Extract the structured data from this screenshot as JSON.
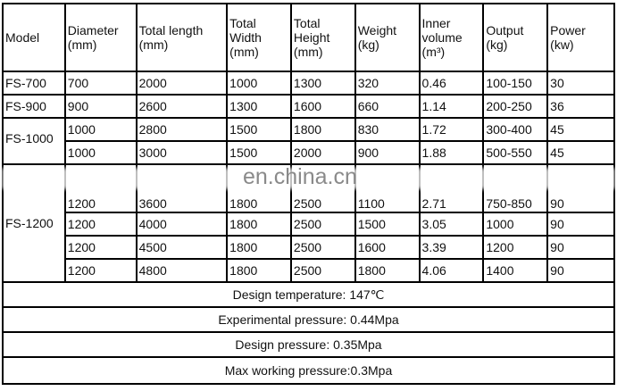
{
  "headers": [
    "Model",
    "Diameter (mm)",
    "Total length (mm)",
    "Total Width (mm)",
    "Total Height (mm)",
    "Weight (kg)",
    "Inner volume (m³)",
    "Output (kg)",
    "Power (kw)"
  ],
  "rows": [
    {
      "model": "FS-700",
      "cells": [
        "700",
        "2000",
        "1000",
        "1300",
        "320",
        "0.46",
        "100-150",
        "30"
      ]
    },
    {
      "model": "FS-900",
      "cells": [
        "900",
        "2600",
        "1300",
        "1600",
        "660",
        "1.14",
        "200-250",
        "36"
      ]
    },
    {
      "model": "FS-1000",
      "cells": [
        "1000",
        "2800",
        "1500",
        "1800",
        "830",
        "1.72",
        "300-400",
        "45"
      ]
    },
    {
      "model": "",
      "cells": [
        "1000",
        "3000",
        "1500",
        "2000",
        "900",
        "1.88",
        "500-550",
        "45"
      ]
    },
    {
      "model": "FS-1200",
      "cells": [
        "1200",
        "3600",
        "1800",
        "2500",
        "1100",
        "2.71",
        "750-850",
        "90"
      ]
    },
    {
      "model": "",
      "cells": [
        "1200",
        "4000",
        "1800",
        "2500",
        "1500",
        "3.05",
        "1000",
        "90"
      ]
    },
    {
      "model": "",
      "cells": [
        "1200",
        "4500",
        "1800",
        "2500",
        "1600",
        "3.39",
        "1200",
        "90"
      ]
    },
    {
      "model": "",
      "cells": [
        "1200",
        "4800",
        "1800",
        "2500",
        "1800",
        "4.06",
        "1400",
        "90"
      ]
    }
  ],
  "notes": [
    "Design temperature: 147℃",
    "Experimental pressure: 0.44Mpa",
    "Design pressure: 0.35Mpa",
    "Max working pressure:0.3Mpa"
  ],
  "watermark": "en.china.cn"
}
